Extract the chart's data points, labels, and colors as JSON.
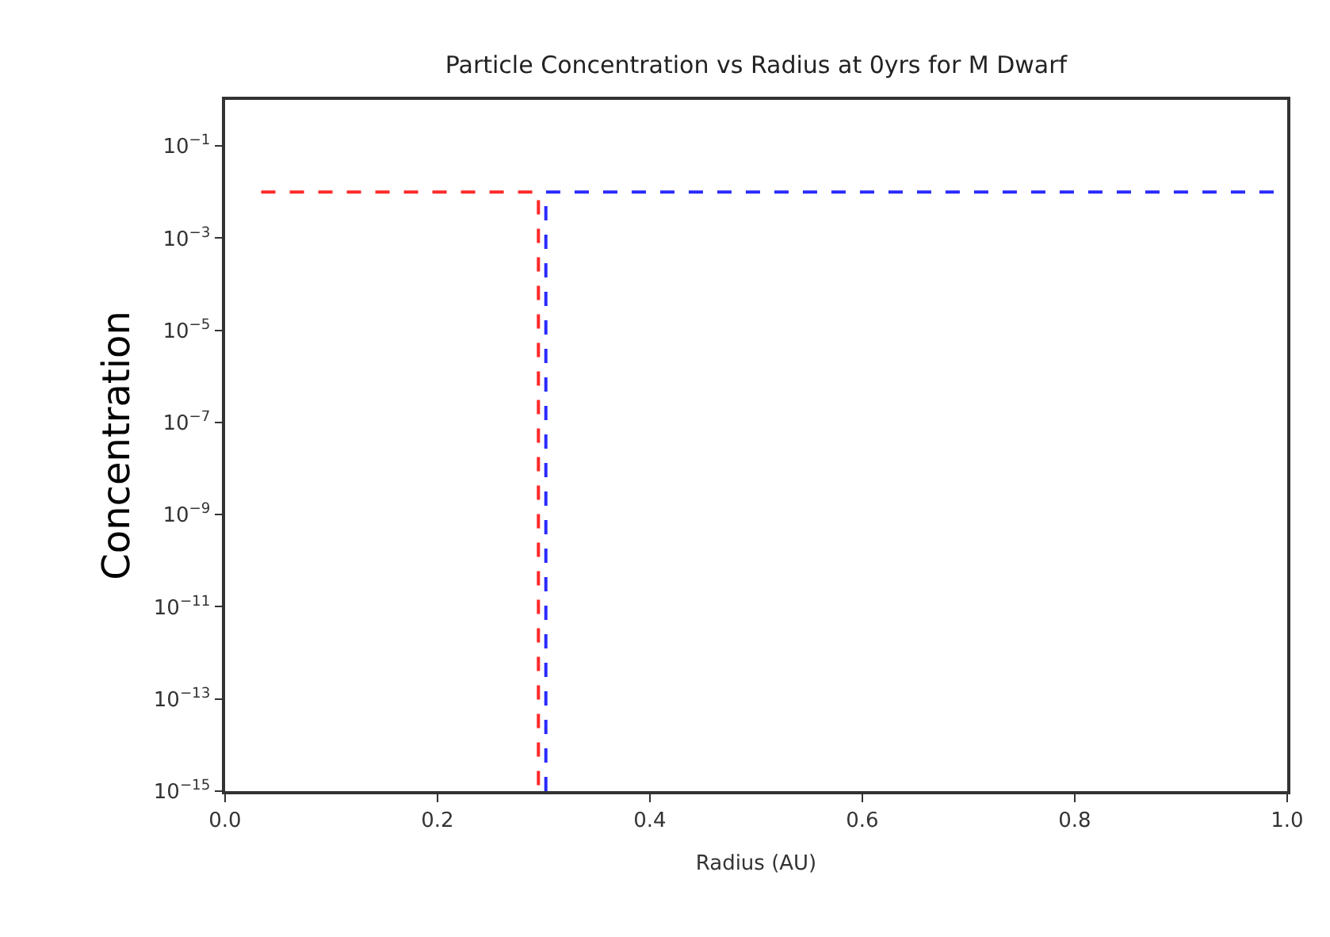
{
  "chart_data": {
    "type": "line",
    "title": "Particle Concentration vs Radius at 0yrs for M Dwarf",
    "xlabel": "Radius (AU)",
    "ylabel": "Concentration",
    "log": "y",
    "line_style": "dashed",
    "marker": "none",
    "series": [
      {
        "color": "#ff2a2a",
        "x": [
          0.034,
          0.295,
          0.295
        ],
        "values": [
          0.01,
          0.01,
          1e-15
        ]
      },
      {
        "color": "#2a2aff",
        "x": [
          0.302,
          0.302,
          1.0
        ],
        "values": [
          1e-15,
          0.01,
          0.01
        ]
      }
    ],
    "xlim": [
      0,
      1
    ],
    "xticks": [
      {
        "value": 0,
        "label": "0.0"
      },
      0.2,
      0.4,
      0.6,
      0.8,
      {
        "value": 1,
        "label": "1.0"
      }
    ],
    "ylim": [
      1e-15,
      1
    ],
    "yticks": [
      {
        "value": 1e-15,
        "label": "10$^{−15}$"
      },
      {
        "value": 1e-13,
        "label": "10$^{−13}$"
      },
      {
        "value": 1e-11,
        "label": "10$^{−11}$"
      },
      {
        "value": 1e-09,
        "label": "10$^{−9}$"
      },
      {
        "value": 1e-07,
        "label": "10$^{−7}$"
      },
      {
        "value": 1e-05,
        "label": "10$^{−5}$"
      },
      {
        "value": 0.001,
        "label": "10$^{−3}$"
      },
      {
        "value": 0.1,
        "label": "10$^{−1}$"
      }
    ]
  }
}
